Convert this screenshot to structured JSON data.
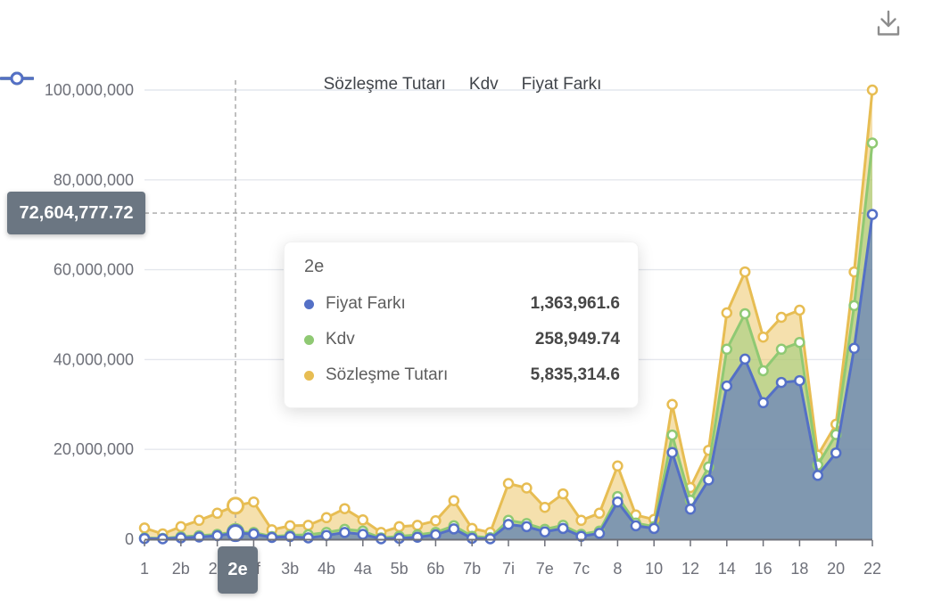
{
  "toolbar": {
    "icon": "download-icon"
  },
  "legend": {
    "items": [
      {
        "label": "Sözleşme Tutarı",
        "color": "#e7bd53"
      },
      {
        "label": "Kdv",
        "color": "#8fc973"
      },
      {
        "label": "Fiyat Farkı",
        "color": "#5470c6"
      }
    ]
  },
  "axis_pointer": {
    "x_label": "2e",
    "y_label": "72,604,777.72",
    "y_value": 72604777.72,
    "highlight_index": 5
  },
  "tooltip": {
    "title": "2e",
    "rows": [
      {
        "series": "Fiyat Farkı",
        "value": "1,363,961.6",
        "color": "#5470c6"
      },
      {
        "series": "Kdv",
        "value": "258,949.74",
        "color": "#8fc973"
      },
      {
        "series": "Sözleşme Tutarı",
        "value": "5,835,314.6",
        "color": "#e7bd53"
      }
    ]
  },
  "chart_data": {
    "type": "area",
    "stacked": true,
    "legend_position": "top",
    "grid": "horizontal-only",
    "ylim": [
      0,
      100000000
    ],
    "y_ticks": [
      {
        "value": 0,
        "label": "0"
      },
      {
        "value": 20000000,
        "label": "20,000,000"
      },
      {
        "value": 40000000,
        "label": "40,000,000"
      },
      {
        "value": 60000000,
        "label": "60,000,000"
      },
      {
        "value": 80000000,
        "label": "80,000,000"
      },
      {
        "value": 100000000,
        "label": "100,000,000"
      }
    ],
    "categories": [
      "1",
      "",
      "2b",
      "",
      "2d",
      "2e",
      "2f",
      "",
      "3b",
      "",
      "4b",
      "",
      "4a",
      "",
      "5b",
      "",
      "6b",
      "",
      "7b",
      "",
      "7i",
      "",
      "7e",
      "",
      "7c",
      "",
      "8",
      "",
      "10",
      "",
      "12",
      "",
      "14",
      "",
      "16",
      "",
      "18",
      "",
      "20",
      "",
      "22"
    ],
    "visible_label_indices": [
      0,
      2,
      4,
      6,
      8,
      10,
      12,
      14,
      16,
      18,
      20,
      22,
      24,
      26,
      28,
      30,
      32,
      34,
      36,
      38,
      40
    ],
    "highlight_index": 5,
    "series": [
      {
        "name": "Fiyat Farkı",
        "color": "#5470c6",
        "fill": "rgba(84,112,198,0.60)",
        "values": [
          150000,
          100000,
          300000,
          500000,
          800000,
          1363961.6,
          1200000,
          400000,
          600000,
          300000,
          850000,
          1500000,
          1100000,
          100000,
          200000,
          450000,
          1000000,
          2300000,
          200000,
          100000,
          3300000,
          2800000,
          1650000,
          2400000,
          650000,
          1300000,
          8300000,
          3000000,
          2400000,
          19300000,
          6700000,
          13200000,
          34100000,
          40100000,
          30400000,
          34900000,
          35300000,
          14200000,
          19200000,
          42500000,
          72300000
        ]
      },
      {
        "name": "Kdv",
        "color": "#8fc973",
        "fill": "rgba(143,201,115,0.50)",
        "values": [
          150000,
          100000,
          250000,
          300000,
          300000,
          258949.74,
          300000,
          200000,
          300000,
          700000,
          650000,
          700000,
          700000,
          200000,
          450000,
          550000,
          500000,
          700000,
          450000,
          250000,
          900000,
          700000,
          550000,
          700000,
          450000,
          500000,
          1200000,
          600000,
          400000,
          3900000,
          2000000,
          2900000,
          8200000,
          10100000,
          7100000,
          7400000,
          8500000,
          2300000,
          4100000,
          9500000,
          15900000
        ]
      },
      {
        "name": "Sözleşme Tutarı",
        "color": "#e7bd53",
        "fill": "rgba(236,194,92,0.50)",
        "values": [
          2200000,
          1000000,
          2250000,
          3400000,
          4700000,
          5835314.6,
          6800000,
          1500000,
          2100000,
          2100000,
          3300000,
          4600000,
          2500000,
          1200000,
          2150000,
          2100000,
          2600000,
          5600000,
          1750000,
          1150000,
          8200000,
          7900000,
          4900000,
          7000000,
          3100000,
          4000000,
          6800000,
          1800000,
          1600000,
          6800000,
          2800000,
          3700000,
          8100000,
          9300000,
          7500000,
          7100000,
          7200000,
          2200000,
          2300000,
          7500000,
          11800000
        ]
      }
    ],
    "colors": {
      "axis_text": "#6e7079",
      "grid_line": "#e4e7ed",
      "axis_line": "#6e7079",
      "pointer_line": "#a6a6a6",
      "badge_bg": "#6b7682"
    }
  }
}
